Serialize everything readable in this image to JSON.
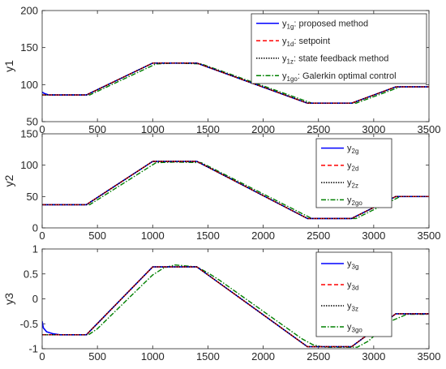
{
  "colors": {
    "proposed": "#0000ff",
    "setpoint": "#ff0000",
    "state_feedback": "#000000",
    "galerkin": "#008000"
  },
  "chart_data": [
    {
      "type": "line",
      "ylabel": "y1",
      "xlim": [
        0,
        3500
      ],
      "ylim": [
        50,
        200
      ],
      "xticks": [
        0,
        500,
        1000,
        1500,
        2000,
        2500,
        3000,
        3500
      ],
      "yticks": [
        50,
        100,
        150,
        200
      ],
      "legend_position": "top-right",
      "legend": [
        {
          "sym": "y",
          "sub": "1g",
          "text": ": proposed method"
        },
        {
          "sym": "y",
          "sub": "1d",
          "text": ": setpoint"
        },
        {
          "sym": "y",
          "sub": "1z",
          "text": ": state feedback method"
        },
        {
          "sym": "y",
          "sub": "1go",
          "text": ": Galerkin optimal control"
        }
      ],
      "series": [
        {
          "key": "proposed",
          "x": [
            0,
            20,
            60,
            400,
            1000,
            1400,
            2400,
            2800,
            3200,
            3500
          ],
          "y": [
            90,
            88,
            86,
            86,
            129,
            129,
            75,
            75,
            97,
            97
          ]
        },
        {
          "key": "setpoint",
          "x": [
            0,
            400,
            1000,
            1400,
            2400,
            2800,
            3200,
            3500
          ],
          "y": [
            86,
            86,
            129,
            129,
            75,
            75,
            97,
            97
          ]
        },
        {
          "key": "state_feedback",
          "x": [
            0,
            400,
            1000,
            1400,
            2400,
            2800,
            3200,
            3500
          ],
          "y": [
            86,
            86,
            129,
            129,
            75,
            75,
            97,
            97
          ]
        },
        {
          "key": "galerkin",
          "x": [
            0,
            430,
            1030,
            1200,
            1440,
            2440,
            2840,
            3240,
            3500
          ],
          "y": [
            86,
            86,
            128,
            129,
            128,
            75,
            75,
            97,
            97
          ]
        }
      ]
    },
    {
      "type": "line",
      "ylabel": "y2",
      "xlim": [
        0,
        3500
      ],
      "ylim": [
        0,
        150
      ],
      "xticks": [
        0,
        500,
        1000,
        1500,
        2000,
        2500,
        3000,
        3500
      ],
      "yticks": [
        0,
        50,
        100,
        150
      ],
      "legend_position": "top-right",
      "legend": [
        {
          "sym": "y",
          "sub": "2g",
          "text": ""
        },
        {
          "sym": "y",
          "sub": "2d",
          "text": ""
        },
        {
          "sym": "y",
          "sub": "2z",
          "text": ""
        },
        {
          "sym": "y",
          "sub": "2go",
          "text": ""
        }
      ],
      "series": [
        {
          "key": "proposed",
          "x": [
            0,
            400,
            1000,
            1400,
            2400,
            2800,
            3200,
            3500
          ],
          "y": [
            37,
            37,
            106,
            106,
            15,
            15,
            50,
            50
          ]
        },
        {
          "key": "setpoint",
          "x": [
            0,
            400,
            1000,
            1400,
            2400,
            2800,
            3200,
            3500
          ],
          "y": [
            37,
            37,
            106,
            106,
            15,
            15,
            50,
            50
          ]
        },
        {
          "key": "state_feedback",
          "x": [
            0,
            400,
            1000,
            1400,
            2400,
            2800,
            3200,
            3500
          ],
          "y": [
            37,
            37,
            106,
            106,
            15,
            15,
            50,
            50
          ]
        },
        {
          "key": "galerkin",
          "x": [
            0,
            430,
            1030,
            1200,
            1440,
            2440,
            2840,
            3240,
            3500
          ],
          "y": [
            37,
            37,
            104,
            105,
            104,
            15,
            15,
            50,
            50
          ]
        }
      ]
    },
    {
      "type": "line",
      "ylabel": "y3",
      "xlim": [
        0,
        3500
      ],
      "ylim": [
        -1,
        1
      ],
      "xticks": [
        0,
        500,
        1000,
        1500,
        2000,
        2500,
        3000,
        3500
      ],
      "yticks": [
        -1,
        -0.5,
        0,
        0.5,
        1
      ],
      "legend_position": "top-right",
      "legend": [
        {
          "sym": "y",
          "sub": "3g",
          "text": ""
        },
        {
          "sym": "y",
          "sub": "3d",
          "text": ""
        },
        {
          "sym": "y",
          "sub": "3z",
          "text": ""
        },
        {
          "sym": "y",
          "sub": "3go",
          "text": ""
        }
      ],
      "series": [
        {
          "key": "proposed",
          "x": [
            0,
            10,
            40,
            100,
            160,
            400,
            1000,
            1400,
            2400,
            2800,
            3200,
            3500
          ],
          "y": [
            -0.45,
            -0.58,
            -0.66,
            -0.7,
            -0.72,
            -0.72,
            0.64,
            0.64,
            -0.96,
            -0.96,
            -0.3,
            -0.3
          ]
        },
        {
          "key": "setpoint",
          "x": [
            0,
            400,
            1000,
            1400,
            2400,
            2800,
            3200,
            3500
          ],
          "y": [
            -0.72,
            -0.72,
            0.64,
            0.64,
            -0.96,
            -0.96,
            -0.3,
            -0.3
          ]
        },
        {
          "key": "state_feedback",
          "x": [
            0,
            400,
            1000,
            1400,
            2400,
            2800,
            3200,
            3500
          ],
          "y": [
            -0.72,
            -0.72,
            0.64,
            0.64,
            -0.96,
            -0.96,
            -0.3,
            -0.3
          ]
        },
        {
          "key": "galerkin",
          "x": [
            0,
            420,
            500,
            800,
            1000,
            1100,
            1200,
            1300,
            1400,
            1500,
            1600,
            2350,
            2450,
            2550,
            2850,
            2950,
            3150,
            3300,
            3500
          ],
          "y": [
            -0.72,
            -0.72,
            -0.6,
            0.05,
            0.48,
            0.62,
            0.68,
            0.66,
            0.64,
            0.52,
            0.38,
            -0.8,
            -0.92,
            -0.97,
            -0.97,
            -0.85,
            -0.45,
            -0.31,
            -0.31
          ]
        }
      ]
    }
  ]
}
